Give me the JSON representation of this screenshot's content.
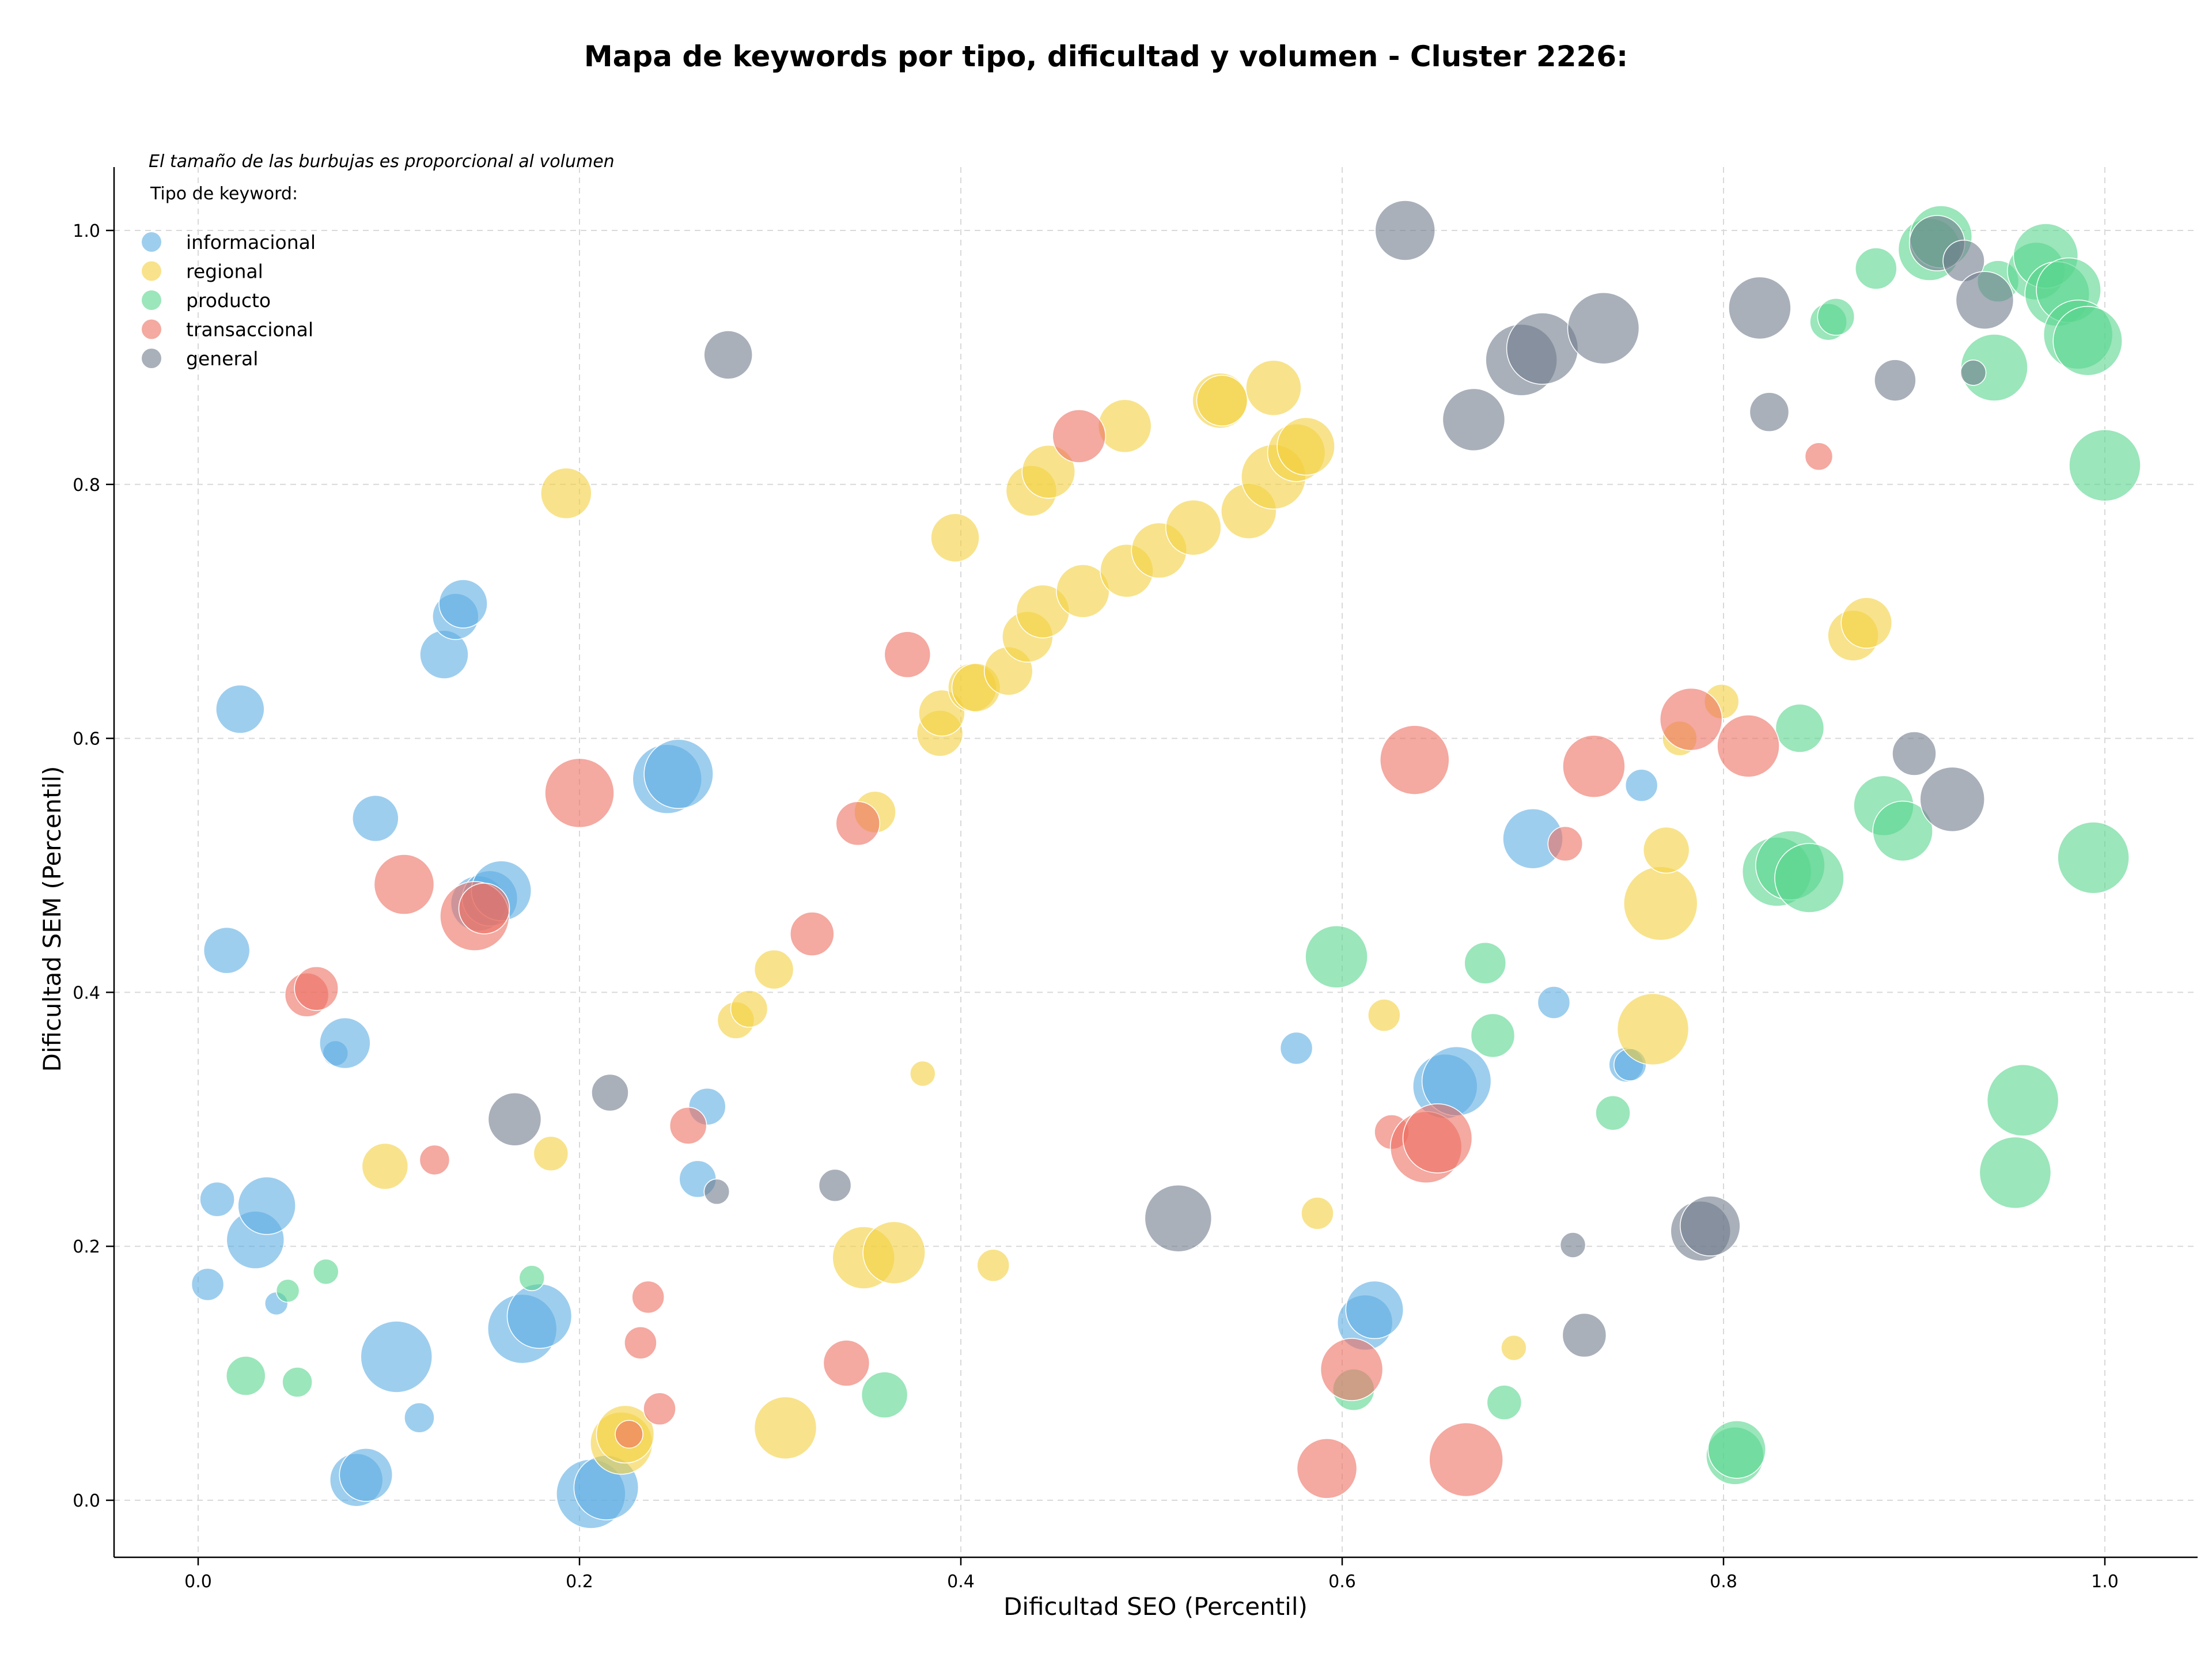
{
  "chart_data": {
    "type": "scatter",
    "title": "Mapa de keywords por tipo, dificultad y volumen - Cluster 2226:",
    "xlabel": "Dificultad SEO (Percentil)",
    "ylabel": "Dificultad SEM (Percentil)",
    "xlim": [
      -0.045,
      1.05
    ],
    "ylim": [
      -0.045,
      1.05
    ],
    "xticks": [
      "0.0",
      "0.2",
      "0.4",
      "0.6",
      "0.8",
      "1.0"
    ],
    "yticks": [
      "0.0",
      "0.2",
      "0.4",
      "0.6",
      "0.8",
      "1.0"
    ],
    "grid": true,
    "legend": {
      "placement": "top-left",
      "note": "El tamaño de las burbujas es proporcional al volumen",
      "title": "Tipo de keyword:"
    },
    "series": [
      {
        "name": "informacional",
        "color": "#5DADE2",
        "points": [
          [
            0.022,
            0.623,
            42
          ],
          [
            0.015,
            0.433,
            40
          ],
          [
            0.005,
            0.17,
            28
          ],
          [
            0.01,
            0.237,
            30
          ],
          [
            0.041,
            0.155,
            20
          ],
          [
            0.03,
            0.205,
            50
          ],
          [
            0.036,
            0.232,
            50
          ],
          [
            0.072,
            0.352,
            22
          ],
          [
            0.077,
            0.36,
            44
          ],
          [
            0.083,
            0.016,
            46
          ],
          [
            0.088,
            0.02,
            46
          ],
          [
            0.093,
            0.537,
            40
          ],
          [
            0.104,
            0.113,
            62
          ],
          [
            0.116,
            0.065,
            26
          ],
          [
            0.129,
            0.666,
            42
          ],
          [
            0.135,
            0.696,
            40
          ],
          [
            0.139,
            0.706,
            42
          ],
          [
            0.147,
            0.47,
            48
          ],
          [
            0.153,
            0.474,
            48
          ],
          [
            0.159,
            0.48,
            52
          ],
          [
            0.17,
            0.135,
            60
          ],
          [
            0.179,
            0.145,
            56
          ],
          [
            0.206,
            0.005,
            60
          ],
          [
            0.214,
            0.01,
            56
          ],
          [
            0.246,
            0.568,
            60
          ],
          [
            0.252,
            0.572,
            60
          ],
          [
            0.262,
            0.253,
            32
          ],
          [
            0.267,
            0.31,
            32
          ],
          [
            0.576,
            0.356,
            28
          ],
          [
            0.612,
            0.14,
            48
          ],
          [
            0.617,
            0.15,
            50
          ],
          [
            0.654,
            0.326,
            56
          ],
          [
            0.66,
            0.33,
            60
          ],
          [
            0.7,
            0.521,
            52
          ],
          [
            0.711,
            0.392,
            28
          ],
          [
            0.749,
            0.343,
            30
          ],
          [
            0.751,
            0.343,
            28
          ],
          [
            0.757,
            0.563,
            28
          ]
        ]
      },
      {
        "name": "regional",
        "color": "#F4D03F",
        "points": [
          [
            0.098,
            0.263,
            40
          ],
          [
            0.185,
            0.273,
            30
          ],
          [
            0.193,
            0.793,
            44
          ],
          [
            0.222,
            0.045,
            54
          ],
          [
            0.224,
            0.052,
            50
          ],
          [
            0.282,
            0.378,
            32
          ],
          [
            0.289,
            0.387,
            32
          ],
          [
            0.302,
            0.418,
            34
          ],
          [
            0.308,
            0.057,
            54
          ],
          [
            0.349,
            0.191,
            54
          ],
          [
            0.355,
            0.542,
            36
          ],
          [
            0.365,
            0.195,
            54
          ],
          [
            0.38,
            0.336,
            22
          ],
          [
            0.389,
            0.604,
            40
          ],
          [
            0.39,
            0.62,
            40
          ],
          [
            0.397,
            0.758,
            42
          ],
          [
            0.406,
            0.64,
            42
          ],
          [
            0.408,
            0.64,
            42
          ],
          [
            0.417,
            0.185,
            28
          ],
          [
            0.425,
            0.653,
            42
          ],
          [
            0.435,
            0.68,
            44
          ],
          [
            0.437,
            0.795,
            44
          ],
          [
            0.443,
            0.7,
            46
          ],
          [
            0.446,
            0.81,
            46
          ],
          [
            0.464,
            0.716,
            46
          ],
          [
            0.486,
            0.846,
            46
          ],
          [
            0.487,
            0.732,
            46
          ],
          [
            0.504,
            0.748,
            48
          ],
          [
            0.522,
            0.766,
            48
          ],
          [
            0.536,
            0.866,
            48
          ],
          [
            0.537,
            0.866,
            44
          ],
          [
            0.551,
            0.779,
            48
          ],
          [
            0.564,
            0.876,
            48
          ],
          [
            0.564,
            0.806,
            56
          ],
          [
            0.576,
            0.825,
            50
          ],
          [
            0.581,
            0.83,
            50
          ],
          [
            0.587,
            0.226,
            28
          ],
          [
            0.622,
            0.382,
            28
          ],
          [
            0.69,
            0.12,
            22
          ],
          [
            0.763,
            0.371,
            62
          ],
          [
            0.767,
            0.47,
            64
          ],
          [
            0.77,
            0.512,
            40
          ],
          [
            0.777,
            0.6,
            30
          ],
          [
            0.799,
            0.629,
            30
          ],
          [
            0.868,
            0.681,
            44
          ],
          [
            0.875,
            0.691,
            44
          ]
        ]
      },
      {
        "name": "producto",
        "color": "#58D68D",
        "points": [
          [
            0.025,
            0.098,
            34
          ],
          [
            0.047,
            0.165,
            20
          ],
          [
            0.052,
            0.093,
            26
          ],
          [
            0.067,
            0.18,
            22
          ],
          [
            0.175,
            0.175,
            22
          ],
          [
            0.36,
            0.083,
            40
          ],
          [
            0.597,
            0.428,
            54
          ],
          [
            0.606,
            0.087,
            36
          ],
          [
            0.675,
            0.423,
            36
          ],
          [
            0.679,
            0.366,
            38
          ],
          [
            0.685,
            0.077,
            30
          ],
          [
            0.742,
            0.305,
            30
          ],
          [
            0.806,
            0.035,
            50
          ],
          [
            0.807,
            0.04,
            50
          ],
          [
            0.828,
            0.495,
            60
          ],
          [
            0.835,
            0.5,
            60
          ],
          [
            0.84,
            0.608,
            42
          ],
          [
            0.845,
            0.49,
            60
          ],
          [
            0.855,
            0.928,
            32
          ],
          [
            0.859,
            0.932,
            32
          ],
          [
            0.88,
            0.97,
            36
          ],
          [
            0.884,
            0.547,
            52
          ],
          [
            0.894,
            0.527,
            52
          ],
          [
            0.908,
            0.985,
            54
          ],
          [
            0.914,
            0.995,
            54
          ],
          [
            0.942,
            0.892,
            58
          ],
          [
            0.944,
            0.96,
            36
          ],
          [
            0.953,
            0.258,
            62
          ],
          [
            0.957,
            0.315,
            62
          ],
          [
            0.964,
            0.968,
            50
          ],
          [
            0.969,
            0.98,
            56
          ],
          [
            0.975,
            0.95,
            56
          ],
          [
            0.981,
            0.953,
            56
          ],
          [
            0.986,
            0.918,
            60
          ],
          [
            0.991,
            0.913,
            60
          ],
          [
            0.994,
            0.506,
            62
          ],
          [
            1.0,
            0.815,
            62
          ]
        ]
      },
      {
        "name": "transaccional",
        "color": "#EC7063",
        "points": [
          [
            0.057,
            0.398,
            38
          ],
          [
            0.062,
            0.403,
            38
          ],
          [
            0.108,
            0.485,
            52
          ],
          [
            0.124,
            0.268,
            26
          ],
          [
            0.145,
            0.46,
            60
          ],
          [
            0.15,
            0.466,
            44
          ],
          [
            0.2,
            0.557,
            60
          ],
          [
            0.226,
            0.052,
            24
          ],
          [
            0.232,
            0.124,
            28
          ],
          [
            0.236,
            0.16,
            28
          ],
          [
            0.242,
            0.072,
            28
          ],
          [
            0.257,
            0.295,
            32
          ],
          [
            0.34,
            0.108,
            40
          ],
          [
            0.346,
            0.533,
            38
          ],
          [
            0.372,
            0.666,
            40
          ],
          [
            0.322,
            0.446,
            38
          ],
          [
            0.462,
            0.838,
            46
          ],
          [
            0.592,
            0.025,
            52
          ],
          [
            0.605,
            0.103,
            54
          ],
          [
            0.626,
            0.29,
            30
          ],
          [
            0.638,
            0.583,
            60
          ],
          [
            0.644,
            0.278,
            62
          ],
          [
            0.65,
            0.285,
            60
          ],
          [
            0.665,
            0.032,
            64
          ],
          [
            0.717,
            0.517,
            30
          ],
          [
            0.732,
            0.578,
            54
          ],
          [
            0.783,
            0.615,
            54
          ],
          [
            0.813,
            0.594,
            54
          ],
          [
            0.85,
            0.822,
            24
          ]
        ]
      },
      {
        "name": "general",
        "color": "#707B8C",
        "points": [
          [
            0.166,
            0.3,
            46
          ],
          [
            0.216,
            0.321,
            32
          ],
          [
            0.272,
            0.243,
            22
          ],
          [
            0.278,
            0.902,
            42
          ],
          [
            0.334,
            0.248,
            28
          ],
          [
            0.514,
            0.222,
            58
          ],
          [
            0.633,
            1.0,
            52
          ],
          [
            0.669,
            0.851,
            54
          ],
          [
            0.694,
            0.898,
            62
          ],
          [
            0.705,
            0.907,
            62
          ],
          [
            0.721,
            0.201,
            22
          ],
          [
            0.727,
            0.13,
            38
          ],
          [
            0.737,
            0.923,
            62
          ],
          [
            0.788,
            0.212,
            52
          ],
          [
            0.793,
            0.216,
            52
          ],
          [
            0.819,
            0.939,
            54
          ],
          [
            0.824,
            0.857,
            34
          ],
          [
            0.89,
            0.882,
            36
          ],
          [
            0.9,
            0.588,
            38
          ],
          [
            0.912,
            0.99,
            48
          ],
          [
            0.92,
            0.552,
            56
          ],
          [
            0.926,
            0.976,
            36
          ],
          [
            0.931,
            0.888,
            22
          ],
          [
            0.937,
            0.945,
            50
          ]
        ]
      }
    ]
  }
}
